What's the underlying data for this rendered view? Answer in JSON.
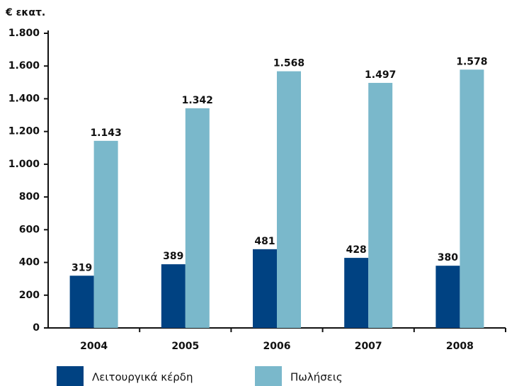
{
  "chart_data": {
    "type": "bar",
    "y_label": "€ εκατ.",
    "categories": [
      "2004",
      "2005",
      "2006",
      "2007",
      "2008"
    ],
    "series": [
      {
        "name": "Λειτουργικά κέρδη",
        "color": "#004282",
        "values": [
          319,
          389,
          481,
          428,
          380
        ]
      },
      {
        "name": "Πωλήσεις",
        "color": "#7ab8cb",
        "values": [
          1143,
          1342,
          1568,
          1497,
          1578
        ],
        "value_labels": [
          "1.143",
          "1.342",
          "1.568",
          "1.497",
          "1.578"
        ]
      }
    ],
    "ylim": [
      0,
      1800
    ],
    "yticks": [
      0,
      200,
      400,
      600,
      800,
      {
        "value": 1000,
        "label": "1.000"
      },
      {
        "value": 1200,
        "label": "1.200"
      },
      {
        "value": 1400,
        "label": "1.400"
      },
      {
        "value": 1600,
        "label": "1.600"
      },
      {
        "value": 1800,
        "label": "1.800"
      }
    ],
    "grid": false,
    "legend": "bottom"
  }
}
